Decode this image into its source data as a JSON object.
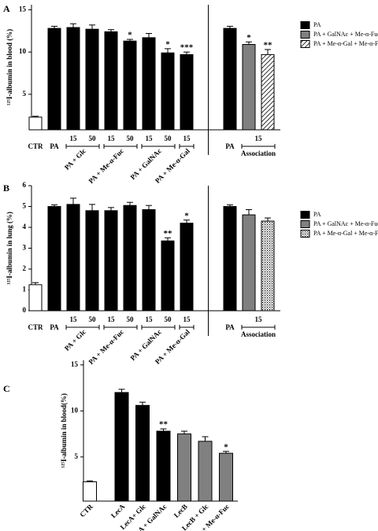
{
  "chart_data": [
    {
      "type": "bar",
      "letter": "A",
      "ylabel": "¹²⁵I-albumin in blood (%)",
      "ylim": [
        0.8,
        15.6
      ],
      "yticks": [
        5,
        10,
        15
      ],
      "legend": [
        {
          "name": "PA",
          "color": "#000000"
        },
        {
          "name": "PA + GalNAc + Me-α-Fuc",
          "color": "#808080"
        },
        {
          "name": "PA + Me-α-Gal + Me-α-Fuc",
          "color": "#ffffff",
          "pattern": "hatch"
        }
      ],
      "sections": [
        {
          "groups": [
            {
              "bars": [
                {
                  "label": "CTR",
                  "value": 2.3,
                  "error": 0.1,
                  "color": "#ffffff"
                }
              ]
            },
            {
              "bars": [
                {
                  "label": "PA",
                  "value": 12.8,
                  "error": 0.25,
                  "color": "#000000"
                }
              ]
            },
            {
              "label": "PA + Glc",
              "bars": [
                {
                  "label": "15",
                  "value": 12.9,
                  "error": 0.45,
                  "color": "#000000"
                },
                {
                  "label": "50",
                  "value": 12.7,
                  "error": 0.5,
                  "color": "#000000"
                }
              ]
            },
            {
              "label": "PA + Me-α-Fuc",
              "bars": [
                {
                  "label": "15",
                  "value": 12.4,
                  "error": 0.25,
                  "color": "#000000"
                },
                {
                  "label": "50",
                  "value": 11.3,
                  "error": 0.2,
                  "color": "#000000",
                  "annotation": "*"
                }
              ]
            },
            {
              "label": "PA + GalNAc",
              "bars": [
                {
                  "label": "15",
                  "value": 11.7,
                  "error": 0.5,
                  "color": "#000000"
                },
                {
                  "label": "50",
                  "value": 9.9,
                  "error": 0.5,
                  "color": "#000000",
                  "annotation": "*"
                }
              ]
            },
            {
              "label": "PA + Me-α-Gal",
              "bars": [
                {
                  "label": "15",
                  "value": 9.7,
                  "error": 0.3,
                  "color": "#000000",
                  "annotation": "***"
                }
              ]
            }
          ]
        },
        {
          "groups": [
            {
              "bars": [
                {
                  "label": "PA",
                  "value": 12.8,
                  "error": 0.25,
                  "color": "#000000"
                }
              ]
            },
            {
              "label": "Association",
              "tick": "15",
              "bars": [
                {
                  "value": 10.9,
                  "error": 0.3,
                  "color": "#808080",
                  "annotation": "*"
                },
                {
                  "value": 9.7,
                  "error": 0.6,
                  "color": "#ffffff",
                  "pattern": "hatch",
                  "annotation": "**"
                }
              ]
            }
          ]
        }
      ]
    },
    {
      "type": "bar",
      "letter": "B",
      "ylabel": "¹²⁵I-albumin in lung (%)",
      "ylim": [
        0,
        6
      ],
      "yticks": [
        0,
        1,
        2,
        3,
        4,
        5,
        6
      ],
      "legend": [
        {
          "name": "PA",
          "color": "#000000"
        },
        {
          "name": "PA + GalNAc + Me-α-Fuc",
          "color": "#808080"
        },
        {
          "name": "PA + Me-α-Gal + Me-α-Fuc",
          "color": "#ffffff",
          "pattern": "dots"
        }
      ],
      "sections": [
        {
          "groups": [
            {
              "bars": [
                {
                  "label": "CTR",
                  "value": 1.25,
                  "error": 0.1,
                  "color": "#ffffff"
                }
              ]
            },
            {
              "bars": [
                {
                  "label": "PA",
                  "value": 5.0,
                  "error": 0.08,
                  "color": "#000000"
                }
              ]
            },
            {
              "label": "PA + Glc",
              "bars": [
                {
                  "label": "15",
                  "value": 5.1,
                  "error": 0.3,
                  "color": "#000000"
                },
                {
                  "label": "50",
                  "value": 4.8,
                  "error": 0.3,
                  "color": "#000000"
                }
              ]
            },
            {
              "label": "PA + Me-α-Fuc",
              "bars": [
                {
                  "label": "15",
                  "value": 4.8,
                  "error": 0.15,
                  "color": "#000000"
                },
                {
                  "label": "50",
                  "value": 5.05,
                  "error": 0.15,
                  "color": "#000000"
                }
              ]
            },
            {
              "label": "PA + GalNAc",
              "bars": [
                {
                  "label": "15",
                  "value": 4.85,
                  "error": 0.2,
                  "color": "#000000"
                },
                {
                  "label": "50",
                  "value": 3.35,
                  "error": 0.15,
                  "color": "#000000",
                  "annotation": "**"
                }
              ]
            },
            {
              "label": "PA + Me-α-Gal",
              "bars": [
                {
                  "label": "15",
                  "value": 4.2,
                  "error": 0.15,
                  "color": "#000000",
                  "annotation": "*"
                }
              ]
            }
          ]
        },
        {
          "groups": [
            {
              "bars": [
                {
                  "label": "PA",
                  "value": 5.0,
                  "error": 0.08,
                  "color": "#000000"
                }
              ]
            },
            {
              "label": "Association",
              "tick": "15",
              "bars": [
                {
                  "value": 4.6,
                  "error": 0.25,
                  "color": "#808080"
                },
                {
                  "value": 4.3,
                  "error": 0.15,
                  "color": "#ffffff",
                  "pattern": "dots"
                }
              ]
            }
          ]
        }
      ]
    },
    {
      "type": "bar",
      "letter": "C",
      "ylabel": "¹²⁵I-albumin in blood(%)",
      "ylim": [
        0.2,
        15.5
      ],
      "yticks": [
        5,
        10,
        15
      ],
      "sections": [
        {
          "groups": [
            {
              "bars": [
                {
                  "label": "CTR",
                  "value": 2.3,
                  "error": 0.1,
                  "color": "#ffffff"
                }
              ]
            },
            {
              "bars": [
                {
                  "label": "LecA",
                  "value": 12.0,
                  "error": 0.35,
                  "color": "#000000"
                },
                {
                  "label": "LecA+ Glc",
                  "value": 10.6,
                  "error": 0.35,
                  "color": "#000000"
                },
                {
                  "label": "LecA + GalNAc",
                  "value": 7.8,
                  "error": 0.25,
                  "color": "#000000",
                  "annotation": "**"
                },
                {
                  "label": "LecB",
                  "value": 7.5,
                  "error": 0.3,
                  "color": "#808080"
                },
                {
                  "label": "LecB + Glc",
                  "value": 6.7,
                  "error": 0.5,
                  "color": "#808080"
                },
                {
                  "label": "LecB + Me-α-Fuc",
                  "value": 5.4,
                  "error": 0.2,
                  "color": "#808080",
                  "annotation": "*"
                }
              ]
            }
          ]
        }
      ]
    }
  ]
}
